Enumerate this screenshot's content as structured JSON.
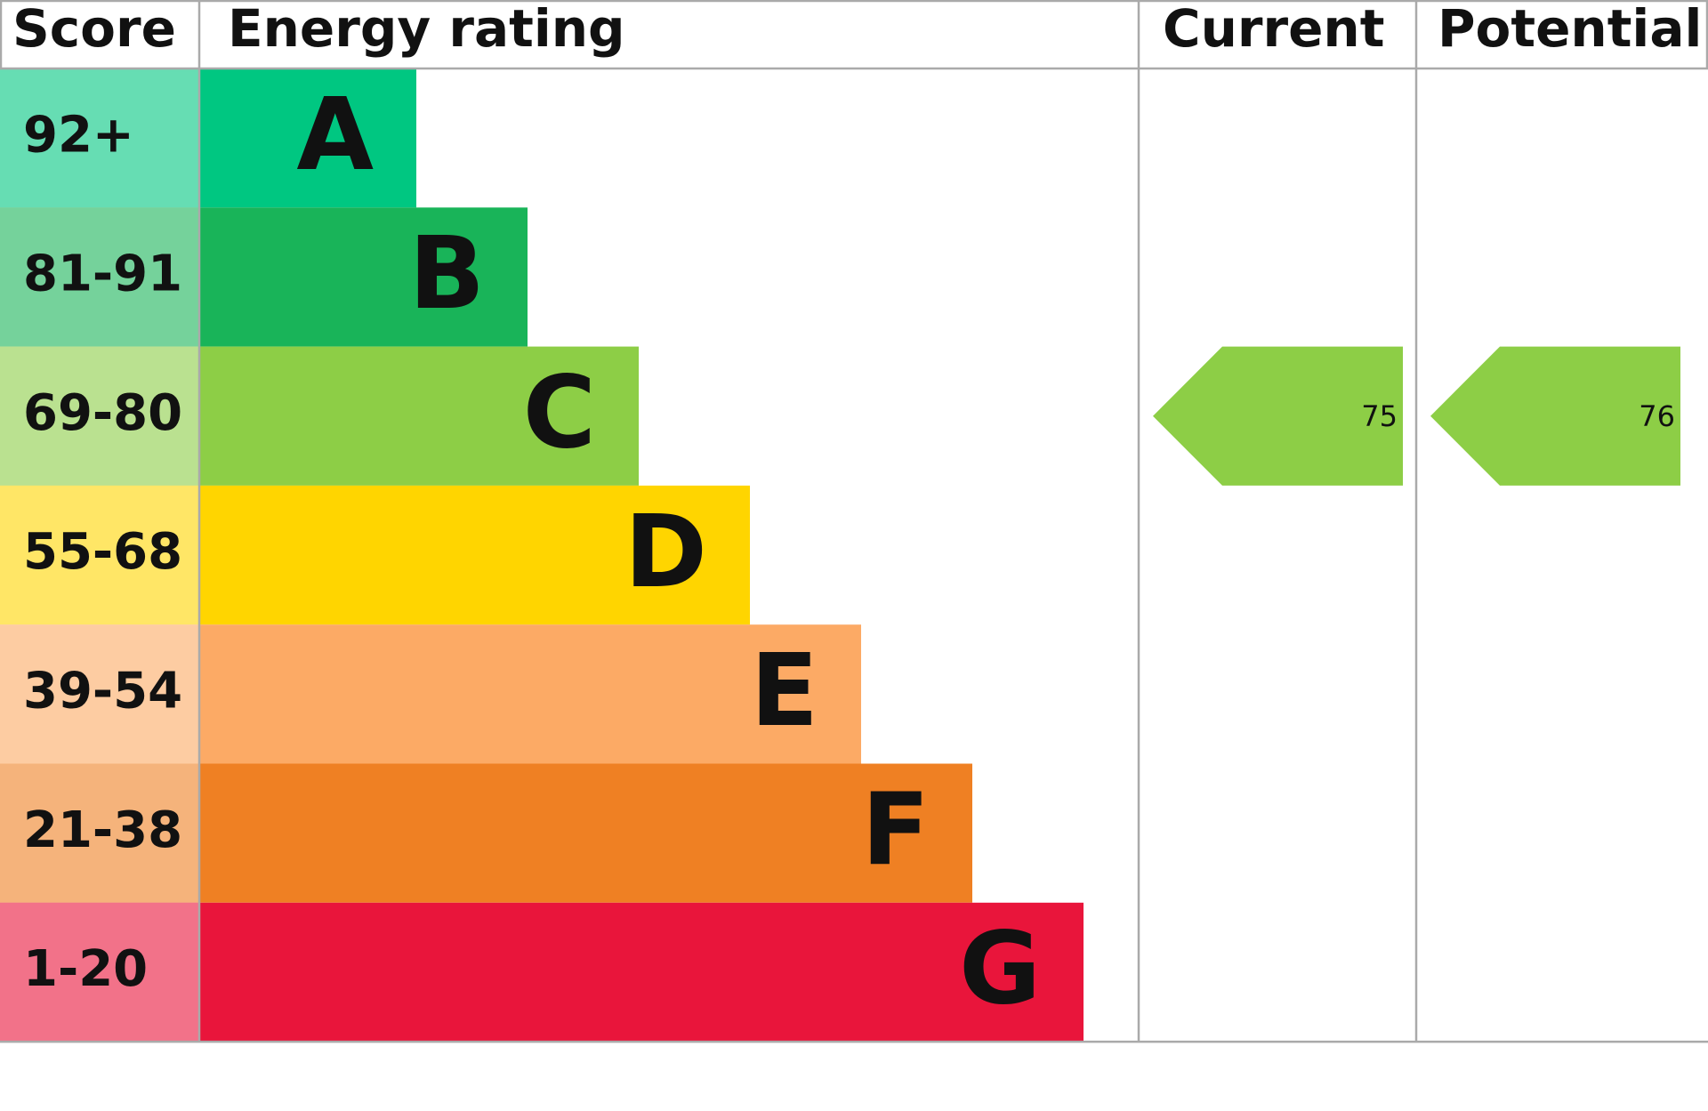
{
  "header": {
    "score": "Score",
    "energy_rating": "Energy rating",
    "current": "Current",
    "potential": "Potential"
  },
  "bands": [
    {
      "score": "92+",
      "letter": "A",
      "color": "#00c781"
    },
    {
      "score": "81-91",
      "letter": "B",
      "color": "#19b459"
    },
    {
      "score": "69-80",
      "letter": "C",
      "color": "#8dce46"
    },
    {
      "score": "55-68",
      "letter": "D",
      "color": "#ffd500"
    },
    {
      "score": "39-54",
      "letter": "E",
      "color": "#fcaa65"
    },
    {
      "score": "21-38",
      "letter": "F",
      "color": "#ef8023"
    },
    {
      "score": "1-20",
      "letter": "G",
      "color": "#e9153b"
    }
  ],
  "current": 75,
  "potential": 76
}
